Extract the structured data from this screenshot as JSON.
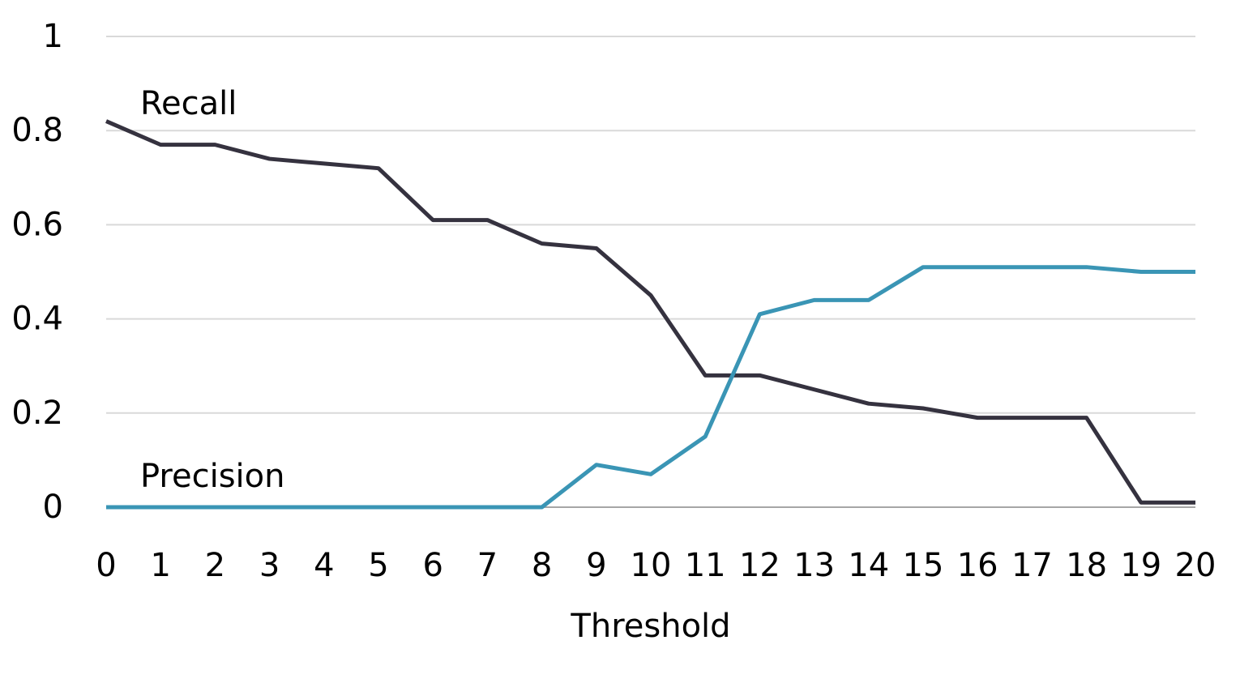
{
  "chart_data": {
    "type": "line",
    "x_label": "Threshold",
    "x": [
      0,
      1,
      2,
      3,
      4,
      5,
      6,
      7,
      8,
      9,
      10,
      11,
      12,
      13,
      14,
      15,
      16,
      17,
      18,
      19,
      20
    ],
    "xlim": [
      0,
      20
    ],
    "xticks": [
      0,
      1,
      2,
      3,
      4,
      5,
      6,
      7,
      8,
      9,
      10,
      11,
      12,
      13,
      14,
      15,
      16,
      17,
      18,
      19,
      20
    ],
    "ylim": [
      0,
      1
    ],
    "yticks": [
      0,
      0.2,
      0.4,
      0.6,
      0.8,
      1
    ],
    "grid": true,
    "series": [
      {
        "name": "Recall",
        "color": "#35323f",
        "values": [
          0.82,
          0.77,
          0.77,
          0.74,
          0.73,
          0.72,
          0.61,
          0.61,
          0.56,
          0.55,
          0.45,
          0.28,
          0.28,
          0.25,
          0.22,
          0.21,
          0.19,
          0.19,
          0.19,
          0.01,
          0.01
        ]
      },
      {
        "name": "Precision",
        "color": "#3a95b5",
        "values": [
          0,
          0,
          0,
          0,
          0,
          0,
          0,
          0,
          0,
          0.09,
          0.07,
          0.15,
          0.41,
          0.44,
          0.44,
          0.51,
          0.51,
          0.51,
          0.51,
          0.5,
          0.5
        ]
      }
    ]
  }
}
